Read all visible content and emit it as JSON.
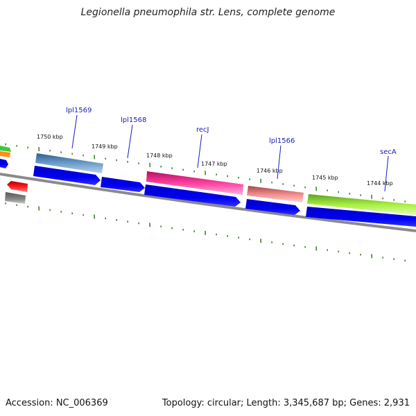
{
  "title": "Legionella pneumophila str. Lens, complete genome",
  "footer": {
    "accession": "Accession: NC_006369",
    "summary": "Topology: circular; Length: 3,345,687 bp; Genes: 2,931"
  },
  "colors": {
    "backbone": "#808080",
    "tick": "#2e7d20",
    "label_link": "#1a1ab8",
    "cds_blue": "#0000e6"
  },
  "tick_labels": [
    "1750 kbp",
    "1749 kbp",
    "1748 kbp",
    "1747 kbp",
    "1746 kbp",
    "1745 kbp",
    "1744 kbp"
  ],
  "gene_labels": [
    "lpl1569",
    "lpl1568",
    "recJ",
    "lpl1566",
    "secA"
  ],
  "features": {
    "outer_track": [
      {
        "name": "lpl1569",
        "color": "#4a7fb5"
      },
      {
        "name": "recJ",
        "color": "#ff2a8c"
      },
      {
        "name": "lpl1566",
        "color": "#f08080"
      },
      {
        "name": "secA",
        "color": "#99e033"
      }
    ],
    "cds_track_count": 6,
    "left_edge": [
      "green",
      "orange",
      "blue",
      "red",
      "grey"
    ]
  }
}
